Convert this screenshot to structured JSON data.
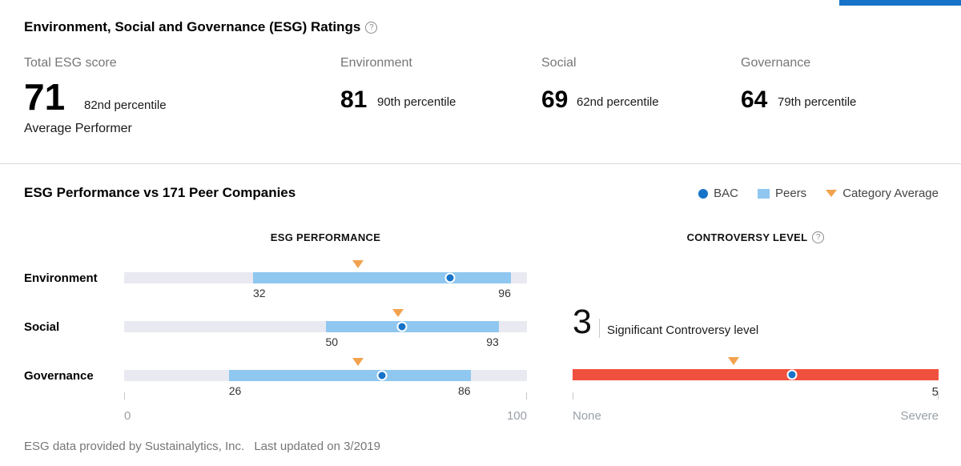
{
  "page": {
    "title": "Environment, Social and Governance (ESG) Ratings"
  },
  "scores": {
    "total": {
      "label": "Total ESG score",
      "value": "71",
      "percentile": "82nd percentile",
      "descriptor": "Average Performer"
    },
    "environment": {
      "label": "Environment",
      "value": "81",
      "percentile": "90th percentile"
    },
    "social": {
      "label": "Social",
      "value": "69",
      "percentile": "62nd percentile"
    },
    "governance": {
      "label": "Governance",
      "value": "64",
      "percentile": "79th percentile"
    }
  },
  "peer_section": {
    "title": "ESG Performance vs 171 Peer Companies",
    "legend": [
      {
        "label": "BAC",
        "swatch": "blue-dot"
      },
      {
        "label": "Peers",
        "swatch": "lightblue-square"
      },
      {
        "label": "Category Average",
        "swatch": "orange-triangle"
      }
    ]
  },
  "chart_data": [
    {
      "type": "bar",
      "subtype": "peer-range-with-markers",
      "title": "ESG PERFORMANCE",
      "axis": {
        "min": 0,
        "max": 100,
        "tick_labels": [
          "0",
          "100"
        ]
      },
      "rows": [
        {
          "category": "Environment",
          "peer_min": 32,
          "peer_max": 96,
          "bac": 81,
          "category_average": 58
        },
        {
          "category": "Social",
          "peer_min": 50,
          "peer_max": 93,
          "bac": 69,
          "category_average": 68
        },
        {
          "category": "Governance",
          "peer_min": 26,
          "peer_max": 86,
          "bac": 64,
          "category_average": 58
        }
      ]
    },
    {
      "type": "bar",
      "subtype": "controversy-scale",
      "title": "CONTROVERSY LEVEL",
      "value_label": "3",
      "description": "Significant Controversy level",
      "scale_min": 0,
      "scale_max": 5,
      "max_label": "5",
      "bac": 3,
      "category_average": 2.2,
      "end_labels": [
        "None",
        "Severe"
      ]
    }
  ],
  "footer": {
    "provider": "ESG data provided by Sustainalytics, Inc.",
    "updated": "Last updated on 3/2019"
  },
  "colors": {
    "accent": "#1673c8",
    "peers": "#8fc7f0",
    "category_average": "#f2a24e",
    "track": "#e9e9f1",
    "controversy": "#f0503e"
  }
}
